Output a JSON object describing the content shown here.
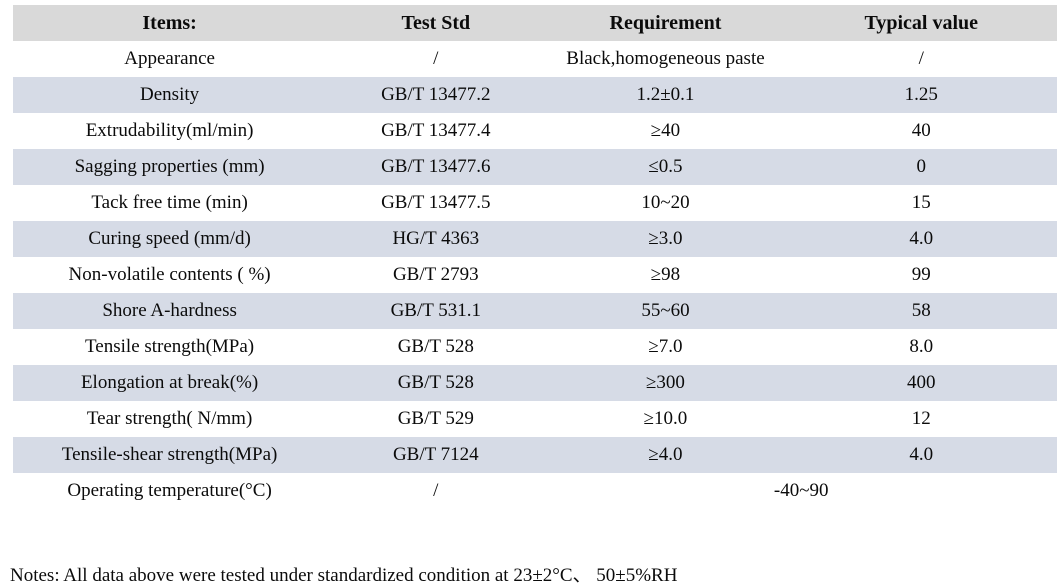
{
  "colors": {
    "header_bg": "#d9d9d9",
    "stripe_bg": "#d6dbe6",
    "text": "#0b0b0b"
  },
  "table": {
    "headers": [
      "Items:",
      "Test Std",
      "Requirement",
      "Typical value"
    ],
    "rows": [
      [
        "Appearance",
        "/",
        "Black,homogeneous paste",
        "/"
      ],
      [
        "Density",
        "GB/T 13477.2",
        "1.2±0.1",
        "1.25"
      ],
      [
        "Extrudability(ml/min)",
        "GB/T 13477.4",
        "≥40",
        "40"
      ],
      [
        "Sagging properties (mm)",
        "GB/T 13477.6",
        "≤0.5",
        "0"
      ],
      [
        "Tack free time (min)",
        "GB/T 13477.5",
        "10~20",
        "15"
      ],
      [
        "Curing speed (mm/d)",
        "HG/T 4363",
        "≥3.0",
        "4.0"
      ],
      [
        "Non-volatile contents ( %)",
        "GB/T 2793",
        "≥98",
        "99"
      ],
      [
        "Shore A-hardness",
        "GB/T 531.1",
        "55~60",
        "58"
      ],
      [
        "Tensile strength(MPa)",
        "GB/T 528",
        "≥7.0",
        "8.0"
      ],
      [
        "Elongation at break(%)",
        "GB/T 528",
        "≥300",
        "400"
      ],
      [
        "Tear strength( N/mm)",
        "GB/T 529",
        "≥10.0",
        "12"
      ],
      [
        "Tensile-shear strength(MPa)",
        "GB/T 7124",
        "≥4.0",
        "4.0"
      ],
      [
        "Operating temperature(°C)",
        "/",
        {
          "text": "-40~90",
          "colspan": 2
        }
      ]
    ]
  },
  "notes": {
    "text": "Notes: All data above were tested under standardized condition at 23±2°C、 50±5%RH"
  }
}
